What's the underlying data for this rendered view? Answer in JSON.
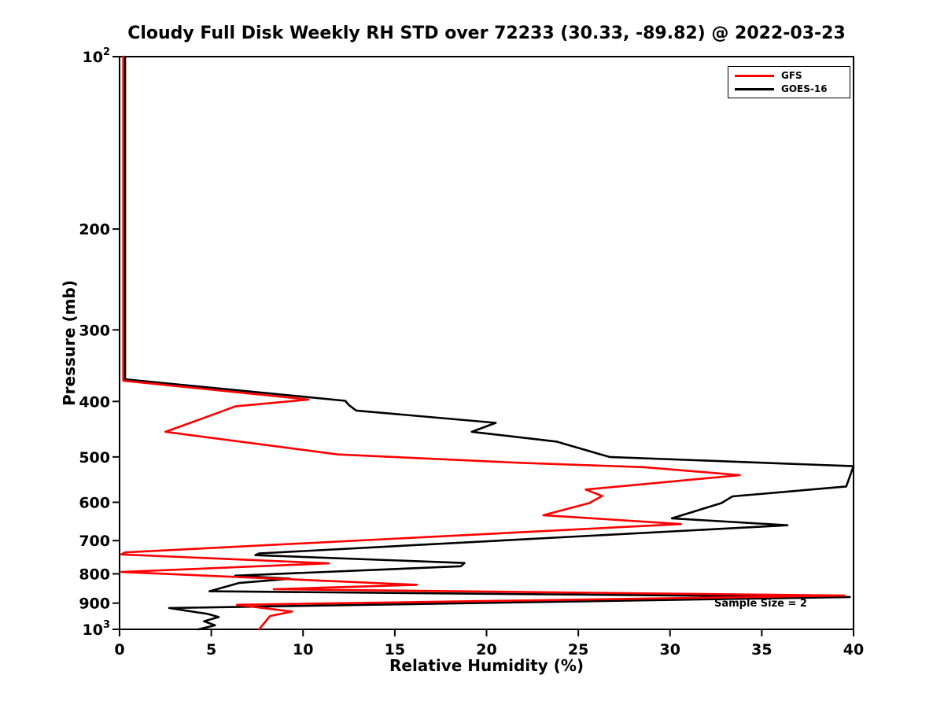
{
  "chart_data": {
    "type": "line",
    "title": "Cloudy Full Disk Weekly RH STD over 72233 (30.33, -89.82) @ 2022-03-23",
    "xlabel": "Relative Humidity (%)",
    "ylabel": "Pressure (mb)",
    "xlim": [
      0,
      40
    ],
    "ylim": [
      100,
      1000
    ],
    "y_scale": "log",
    "y_axis_direction": "inverted-pressure-top-low",
    "grid": false,
    "legend_position": "top-right",
    "x_ticks": [
      0,
      5,
      10,
      15,
      20,
      25,
      30,
      35,
      40
    ],
    "y_ticks": [
      {
        "value": 100,
        "label": "10^2"
      },
      {
        "value": 200,
        "label": "200"
      },
      {
        "value": 300,
        "label": "300"
      },
      {
        "value": 400,
        "label": "400"
      },
      {
        "value": 500,
        "label": "500"
      },
      {
        "value": 600,
        "label": "600"
      },
      {
        "value": 700,
        "label": "700"
      },
      {
        "value": 800,
        "label": "800"
      },
      {
        "value": 900,
        "label": "900"
      },
      {
        "value": 1000,
        "label": "10^3"
      }
    ],
    "series": [
      {
        "name": "GFS",
        "color": "#ff0000",
        "points_format": "[rh_percent, pressure_mb]",
        "points": [
          [
            0.2,
            100
          ],
          [
            0.2,
            200
          ],
          [
            0.2,
            300
          ],
          [
            0.2,
            368
          ],
          [
            10.3,
            397
          ],
          [
            6.3,
            408
          ],
          [
            5.6,
            416
          ],
          [
            4.2,
            432
          ],
          [
            2.5,
            452
          ],
          [
            11.9,
            495
          ],
          [
            21.8,
            512
          ],
          [
            28.6,
            521
          ],
          [
            33.8,
            538
          ],
          [
            25.4,
            570
          ],
          [
            26.3,
            585
          ],
          [
            25.6,
            602
          ],
          [
            23.1,
            632
          ],
          [
            30.6,
            655
          ],
          [
            0.3,
            734
          ],
          [
            0.1,
            740
          ],
          [
            11.4,
            767
          ],
          [
            0.1,
            794
          ],
          [
            16.2,
            836
          ],
          [
            8.4,
            851
          ],
          [
            39.5,
            873
          ],
          [
            6.4,
            906
          ],
          [
            9.4,
            931
          ],
          [
            8.2,
            948
          ],
          [
            7.6,
            1000
          ]
        ]
      },
      {
        "name": "GOES-16",
        "color": "#000000",
        "points_format": "[rh_percent, pressure_mb]",
        "points": [
          [
            0.3,
            100
          ],
          [
            0.3,
            200
          ],
          [
            0.3,
            300
          ],
          [
            0.3,
            366
          ],
          [
            12.3,
            399
          ],
          [
            12.5,
            406
          ],
          [
            12.9,
            415
          ],
          [
            20.5,
            436
          ],
          [
            19.2,
            452
          ],
          [
            23.8,
            470
          ],
          [
            26.7,
            500
          ],
          [
            40.0,
            519
          ],
          [
            39.6,
            563
          ],
          [
            33.4,
            586
          ],
          [
            32.8,
            602
          ],
          [
            30.1,
            640
          ],
          [
            36.4,
            658
          ],
          [
            7.6,
            737
          ],
          [
            7.4,
            742
          ],
          [
            18.8,
            766
          ],
          [
            18.6,
            776
          ],
          [
            6.3,
            806
          ],
          [
            9.3,
            816
          ],
          [
            6.5,
            830
          ],
          [
            4.9,
            858
          ],
          [
            39.8,
            878
          ],
          [
            2.7,
            918
          ],
          [
            4.8,
            940
          ],
          [
            5.4,
            952
          ],
          [
            4.6,
            968
          ],
          [
            5.2,
            984
          ],
          [
            4.3,
            1000
          ]
        ]
      }
    ],
    "annotation": {
      "text": "Sample Size = 2",
      "x_rh": 32.4,
      "y_pressure": 905
    }
  },
  "legend": {
    "items": [
      {
        "label": "GFS"
      },
      {
        "label": "GOES-16"
      }
    ]
  }
}
